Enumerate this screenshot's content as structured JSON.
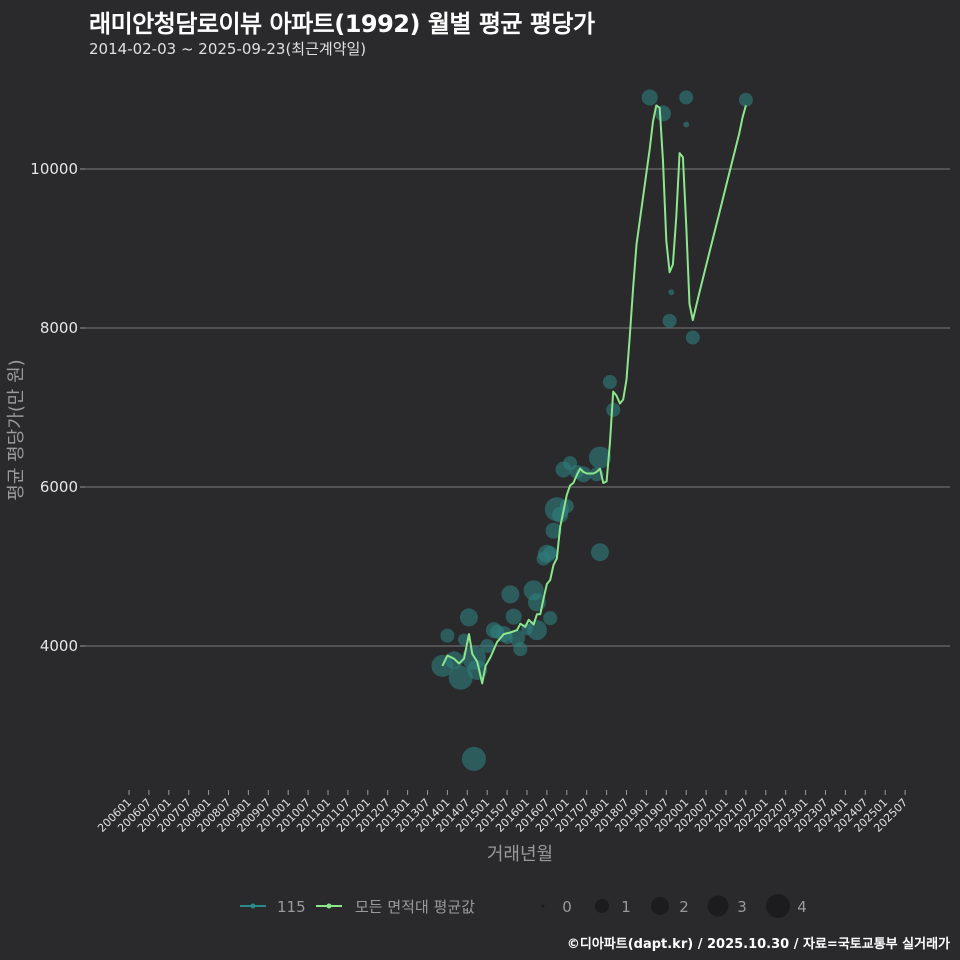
{
  "header": {
    "title": "래미안청담로이뷰 아파트(1992) 월별 평균 평당가",
    "subtitle": "2014-02-03 ~ 2025-09-23(최근계약일)"
  },
  "footer": {
    "credit": "©디아파트(dapt.kr) / 2025.10.30 / 자료=국토교통부 실거래가"
  },
  "colors": {
    "background": "#2a2a2c",
    "grid": "#6a6a6a",
    "series_115": "#2a8a8a",
    "series_avg": "#8ce68c",
    "bubble_fill": "#2e7f7d"
  },
  "chart_data": {
    "type": "line",
    "title": "래미안청담로이뷰 아파트(1992) 월별 평균 평당가",
    "subtitle": "2014-02-03 ~ 2025-09-23(최근계약일)",
    "xlabel": "거래년월",
    "ylabel": "평균 평당가(만 원)",
    "x_start": "200601",
    "categories": [
      "200601",
      "200607",
      "200701",
      "200707",
      "200801",
      "200807",
      "200901",
      "200907",
      "201001",
      "201007",
      "201101",
      "201107",
      "201201",
      "201207",
      "201301",
      "201307",
      "201401",
      "201407",
      "201501",
      "201507",
      "201601",
      "201607",
      "201701",
      "201707",
      "201801",
      "201807",
      "201901",
      "201907",
      "202001",
      "202007",
      "202101",
      "202107",
      "202201",
      "202207",
      "202301",
      "202307",
      "202401",
      "202407",
      "202501",
      "202507"
    ],
    "y_ticks": [
      4000,
      6000,
      8000,
      10000
    ],
    "ylim": [
      2300,
      11200
    ],
    "grid": true,
    "legend": {
      "series": [
        {
          "name": "115",
          "color": "#2a8a8a"
        },
        {
          "name": "모든 면적대 평균값",
          "color": "#8ce68c"
        }
      ],
      "sizes": [
        "0",
        "1",
        "2",
        "3",
        "4"
      ]
    },
    "series": [
      {
        "name": "모든 면적대 평균값",
        "points": [
          [
            94.5,
            3750
          ],
          [
            96,
            3880
          ],
          [
            98,
            3840
          ],
          [
            99.5,
            3780
          ],
          [
            101,
            3840
          ],
          [
            102.5,
            4150
          ],
          [
            103.5,
            3900
          ],
          [
            105,
            3800
          ],
          [
            106.5,
            3530
          ],
          [
            107.5,
            3750
          ],
          [
            109,
            3860
          ],
          [
            111,
            4050
          ],
          [
            113,
            4150
          ],
          [
            115,
            4170
          ],
          [
            117,
            4200
          ],
          [
            118,
            4280
          ],
          [
            119.5,
            4240
          ],
          [
            120.5,
            4330
          ],
          [
            122,
            4270
          ],
          [
            123,
            4400
          ],
          [
            124,
            4400
          ],
          [
            125,
            4600
          ],
          [
            126,
            4780
          ],
          [
            127,
            4830
          ],
          [
            128,
            5020
          ],
          [
            129,
            5100
          ],
          [
            130,
            5500
          ],
          [
            131,
            5700
          ],
          [
            132,
            5900
          ],
          [
            133,
            6020
          ],
          [
            134,
            6050
          ],
          [
            135,
            6150
          ],
          [
            136,
            6230
          ],
          [
            137,
            6190
          ],
          [
            138,
            6170
          ],
          [
            140,
            6170
          ],
          [
            141,
            6190
          ],
          [
            142,
            6230
          ],
          [
            143,
            6050
          ],
          [
            144,
            6070
          ],
          [
            145,
            6550
          ],
          [
            146,
            7200
          ],
          [
            147,
            7150
          ],
          [
            148,
            7050
          ],
          [
            149,
            7100
          ],
          [
            150,
            7350
          ],
          [
            151,
            7900
          ],
          [
            152,
            8500
          ],
          [
            153,
            9050
          ],
          [
            155,
            9650
          ],
          [
            157,
            10250
          ],
          [
            158,
            10600
          ],
          [
            159,
            10800
          ],
          [
            160,
            10770
          ],
          [
            161,
            10100
          ],
          [
            162,
            9100
          ],
          [
            163,
            8700
          ],
          [
            164,
            8800
          ],
          [
            165,
            9400
          ],
          [
            166,
            10200
          ],
          [
            167,
            10150
          ],
          [
            168,
            9300
          ],
          [
            169,
            8300
          ],
          [
            170,
            8100
          ],
          [
            172,
            8450
          ],
          [
            175,
            8950
          ],
          [
            178,
            9450
          ],
          [
            181,
            9950
          ],
          [
            184,
            10450
          ],
          [
            185,
            10650
          ],
          [
            186,
            10800
          ]
        ]
      },
      {
        "name": "115",
        "bubbles": [
          [
            94.5,
            3750,
            11
          ],
          [
            96,
            4130,
            7
          ],
          [
            98,
            3820,
            9
          ],
          [
            100,
            3600,
            12
          ],
          [
            101,
            4080,
            6
          ],
          [
            102.5,
            4360,
            9
          ],
          [
            104,
            3850,
            12
          ],
          [
            105,
            3700,
            10
          ],
          [
            104,
            2580,
            12
          ],
          [
            108,
            4000,
            7
          ],
          [
            110,
            4200,
            8
          ],
          [
            111,
            4180,
            7
          ],
          [
            113,
            4150,
            8
          ],
          [
            114,
            4100,
            6
          ],
          [
            115,
            4650,
            9
          ],
          [
            116,
            4370,
            8
          ],
          [
            117,
            4100,
            8
          ],
          [
            118,
            3960,
            7
          ],
          [
            120,
            4210,
            6
          ],
          [
            122,
            4700,
            10
          ],
          [
            123,
            4550,
            9
          ],
          [
            123,
            4200,
            10
          ],
          [
            125,
            5100,
            7
          ],
          [
            126,
            5160,
            9
          ],
          [
            127,
            5170,
            7
          ],
          [
            127,
            4350,
            7
          ],
          [
            128,
            5450,
            8
          ],
          [
            129,
            5720,
            12
          ],
          [
            130,
            5650,
            8
          ],
          [
            131,
            6220,
            8
          ],
          [
            132,
            5760,
            7
          ],
          [
            133,
            6300,
            7
          ],
          [
            135,
            6190,
            7
          ],
          [
            137,
            6160,
            8
          ],
          [
            141,
            6160,
            7
          ],
          [
            142,
            6370,
            11
          ],
          [
            142,
            5180,
            9
          ],
          [
            145,
            7320,
            7
          ],
          [
            146,
            6970,
            7
          ],
          [
            157,
            10900,
            8
          ],
          [
            161,
            10700,
            8
          ],
          [
            163,
            8090,
            7
          ],
          [
            163.5,
            8450,
            3
          ],
          [
            168,
            10900,
            7
          ],
          [
            168,
            10560,
            3
          ],
          [
            170,
            7880,
            7
          ],
          [
            186,
            10870,
            7
          ]
        ]
      }
    ]
  },
  "axes": {
    "x_title": "거래년월",
    "y_title": "평균 평당가(만 원)"
  }
}
